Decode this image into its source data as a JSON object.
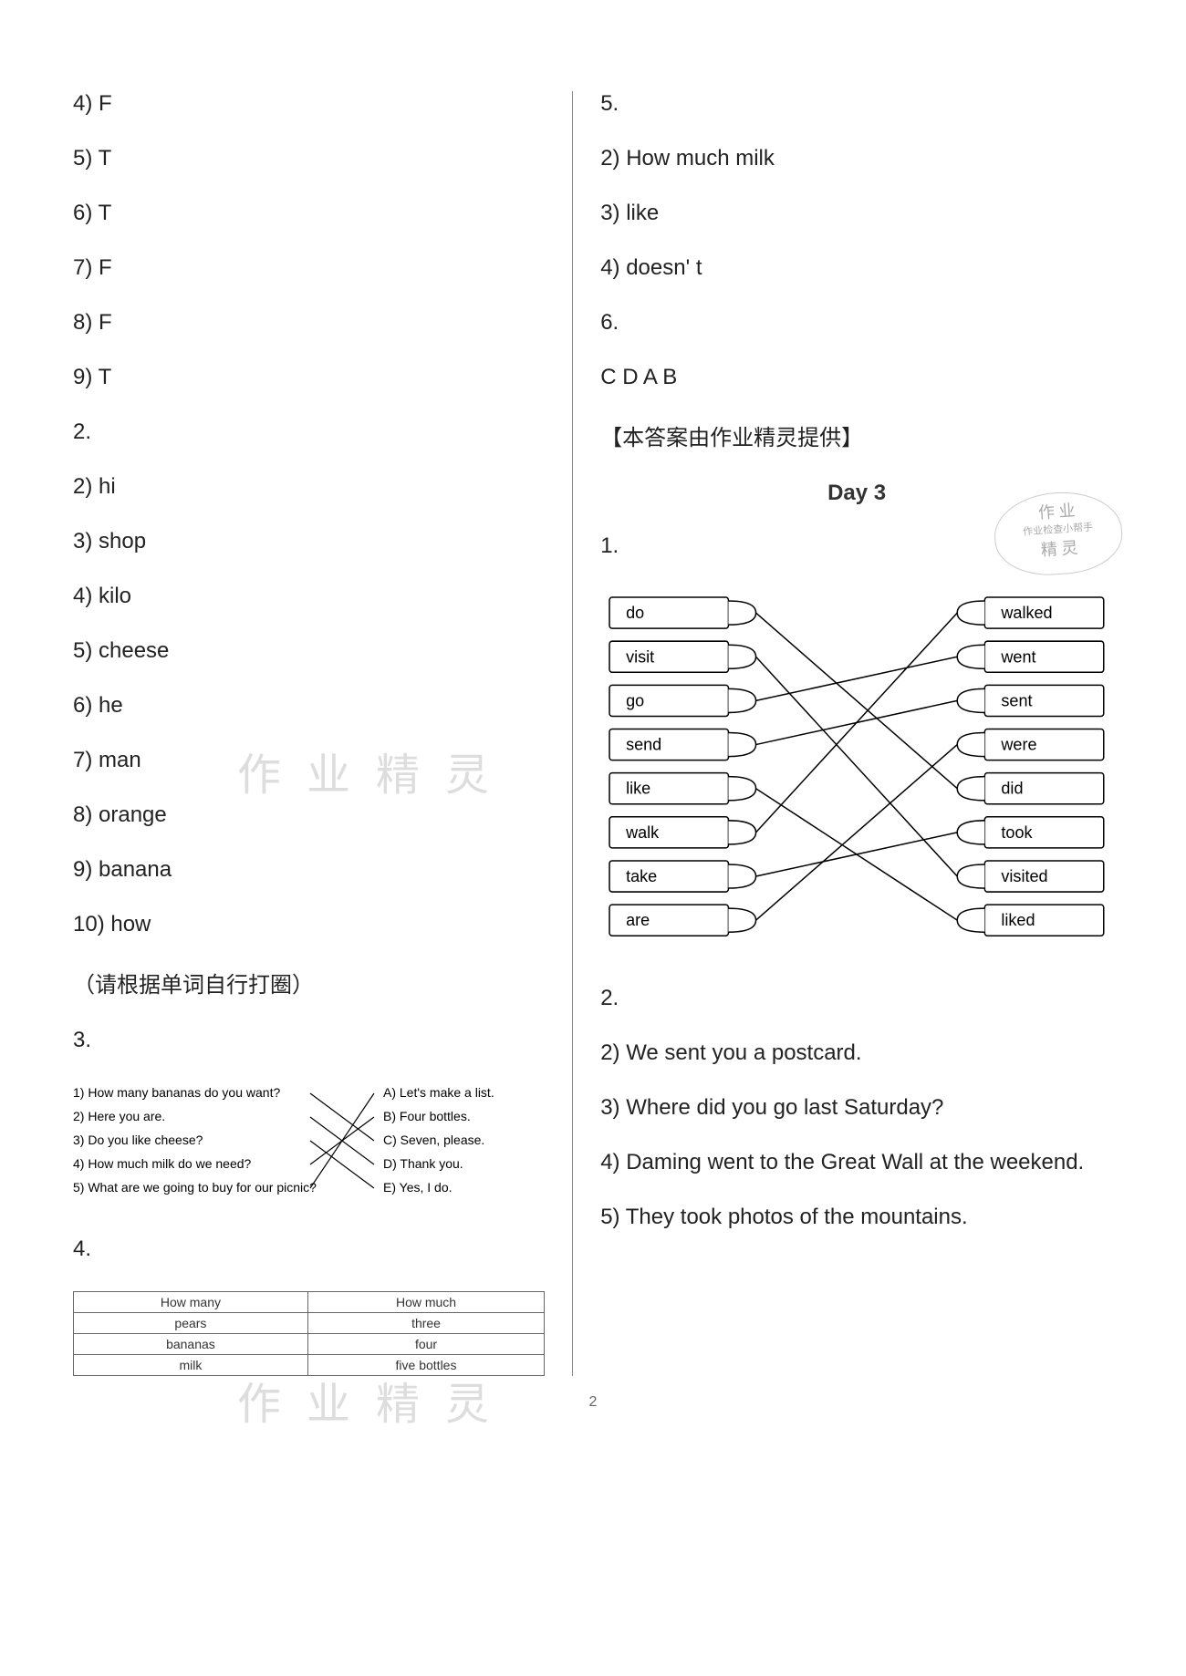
{
  "left": {
    "section1_answers": [
      {
        "num": "4)",
        "val": "F"
      },
      {
        "num": "5)",
        "val": "T"
      },
      {
        "num": "6)",
        "val": "T"
      },
      {
        "num": "7)",
        "val": "F"
      },
      {
        "num": "8)",
        "val": "F"
      },
      {
        "num": "9)",
        "val": "T"
      }
    ],
    "section2_label": "2.",
    "section2_answers": [
      {
        "num": "2)",
        "val": "hi"
      },
      {
        "num": "3)",
        "val": "shop"
      },
      {
        "num": "4)",
        "val": "kilo"
      },
      {
        "num": "5)",
        "val": "cheese"
      },
      {
        "num": "6)",
        "val": "he"
      },
      {
        "num": "7)",
        "val": "man"
      },
      {
        "num": "8)",
        "val": "orange"
      },
      {
        "num": "9)",
        "val": "banana"
      },
      {
        "num": "10)",
        "val": "how"
      }
    ],
    "section2_note": "（请根据单词自行打圈）",
    "section3_label": "3.",
    "exercise3": {
      "left_items": [
        "1) How many bananas do you want?",
        "2) Here you are.",
        "3) Do you like cheese?",
        "4) How much milk do we need?",
        "5) What are we going to buy for our picnic?"
      ],
      "right_items": [
        "A) Let's make a list.",
        "B) Four bottles.",
        "C) Seven, please.",
        "D) Thank you.",
        "E) Yes, I do."
      ],
      "connections": [
        [
          0,
          2
        ],
        [
          1,
          3
        ],
        [
          2,
          4
        ],
        [
          3,
          1
        ],
        [
          4,
          0
        ]
      ]
    },
    "section4_label": "4.",
    "table4": {
      "headers": [
        "How many",
        "How much"
      ],
      "rows": [
        [
          "pears",
          "three"
        ],
        [
          "bananas",
          "four"
        ],
        [
          "milk",
          "five bottles"
        ]
      ]
    }
  },
  "right": {
    "section5_label": "5.",
    "section5_answers": [
      {
        "num": "2)",
        "val": "How much milk"
      },
      {
        "num": "3)",
        "val": "like"
      },
      {
        "num": "4)",
        "val": "doesn' t"
      }
    ],
    "section6_label": "6.",
    "section6_answer": "C D A B",
    "credit": "【本答案由作业精灵提供】",
    "day_heading": "Day 3",
    "day3_section1_label": "1.",
    "matching": {
      "left_words": [
        "do",
        "visit",
        "go",
        "send",
        "like",
        "walk",
        "take",
        "are"
      ],
      "right_words": [
        "walked",
        "went",
        "sent",
        "were",
        "did",
        "took",
        "visited",
        "liked"
      ],
      "connections": [
        [
          0,
          4
        ],
        [
          1,
          6
        ],
        [
          2,
          1
        ],
        [
          3,
          2
        ],
        [
          4,
          7
        ],
        [
          5,
          0
        ],
        [
          6,
          5
        ],
        [
          7,
          3
        ]
      ],
      "box_fill": "#ffffff",
      "box_stroke": "#000000",
      "line_color": "#000000"
    },
    "day3_section2_label": "2.",
    "day3_section2_answers": [
      {
        "num": "2)",
        "val": "We sent you a postcard."
      },
      {
        "num": "3)",
        "val": "Where did you go last Saturday?"
      },
      {
        "num": "4)",
        "val": "Daming went to the Great Wall at the weekend."
      },
      {
        "num": "5)",
        "val": "They took photos of the mountains."
      }
    ]
  },
  "watermarks": {
    "wm1": "作 业 精 灵",
    "wm2": "作 业 精 灵",
    "stamp_line1": "作 业",
    "stamp_line2": "作业检查小帮手",
    "stamp_line3": "精 灵"
  },
  "page_number": "2"
}
